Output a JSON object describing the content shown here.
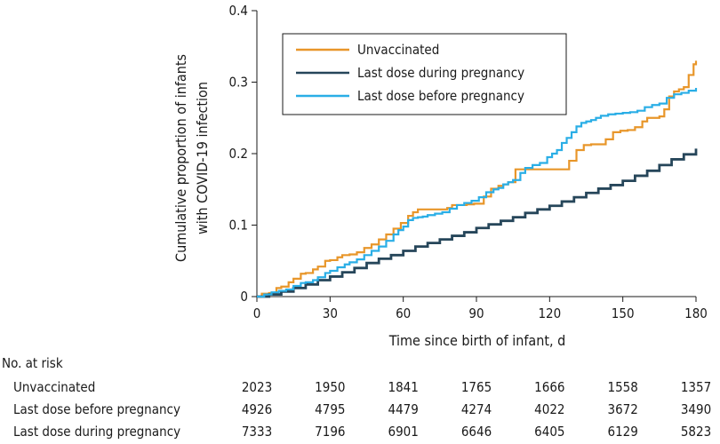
{
  "chart_data": {
    "type": "line",
    "xlabel": "Time since birth of infant, d",
    "ylabel_lines": [
      "Cumulative proportion of infants",
      "with COVID-19 infection"
    ],
    "xlim": [
      0,
      180
    ],
    "ylim": [
      0,
      0.4
    ],
    "x_ticks": [
      0,
      30,
      60,
      90,
      120,
      150,
      180
    ],
    "y_ticks": [
      0,
      0.1,
      0.2,
      0.3,
      0.4
    ],
    "x_tick_labels": [
      "0",
      "30",
      "60",
      "90",
      "120",
      "150",
      "180"
    ],
    "y_tick_labels": [
      "0",
      "0.1",
      "0.2",
      "0.3",
      "0.4"
    ],
    "grid": false,
    "legend_position": "top-right",
    "series": [
      {
        "name": "Unvaccinated",
        "color": "#e8962a",
        "points": [
          [
            0,
            0
          ],
          [
            2,
            0.004
          ],
          [
            5,
            0.005
          ],
          [
            8,
            0.012
          ],
          [
            10,
            0.014
          ],
          [
            13,
            0.02
          ],
          [
            15,
            0.025
          ],
          [
            18,
            0.032
          ],
          [
            20,
            0.033
          ],
          [
            23,
            0.038
          ],
          [
            25,
            0.042
          ],
          [
            28,
            0.05
          ],
          [
            30,
            0.051
          ],
          [
            33,
            0.055
          ],
          [
            35,
            0.058
          ],
          [
            38,
            0.059
          ],
          [
            41,
            0.062
          ],
          [
            44,
            0.068
          ],
          [
            47,
            0.073
          ],
          [
            50,
            0.08
          ],
          [
            53,
            0.087
          ],
          [
            56,
            0.095
          ],
          [
            59,
            0.103
          ],
          [
            62,
            0.113
          ],
          [
            64,
            0.118
          ],
          [
            66,
            0.122
          ],
          [
            69,
            0.122
          ],
          [
            72,
            0.122
          ],
          [
            75,
            0.122
          ],
          [
            78,
            0.124
          ],
          [
            80,
            0.128
          ],
          [
            83,
            0.128
          ],
          [
            86,
            0.129
          ],
          [
            89,
            0.13
          ],
          [
            91,
            0.13
          ],
          [
            93,
            0.14
          ],
          [
            96,
            0.151
          ],
          [
            99,
            0.155
          ],
          [
            101,
            0.157
          ],
          [
            103,
            0.16
          ],
          [
            106,
            0.178
          ],
          [
            108,
            0.178
          ],
          [
            111,
            0.178
          ],
          [
            114,
            0.178
          ],
          [
            117,
            0.178
          ],
          [
            120,
            0.178
          ],
          [
            123,
            0.178
          ],
          [
            125,
            0.178
          ],
          [
            128,
            0.19
          ],
          [
            131,
            0.205
          ],
          [
            134,
            0.212
          ],
          [
            137,
            0.213
          ],
          [
            140,
            0.213
          ],
          [
            143,
            0.22
          ],
          [
            146,
            0.23
          ],
          [
            149,
            0.232
          ],
          [
            152,
            0.233
          ],
          [
            155,
            0.237
          ],
          [
            158,
            0.245
          ],
          [
            160,
            0.25
          ],
          [
            163,
            0.25
          ],
          [
            165,
            0.252
          ],
          [
            167,
            0.262
          ],
          [
            169,
            0.28
          ],
          [
            171,
            0.287
          ],
          [
            173,
            0.29
          ],
          [
            175,
            0.293
          ],
          [
            177,
            0.31
          ],
          [
            179,
            0.325
          ],
          [
            180,
            0.33
          ]
        ]
      },
      {
        "name": "Last dose during pregnancy",
        "color": "#26465a",
        "points": [
          [
            0,
            0
          ],
          [
            5,
            0.003
          ],
          [
            10,
            0.007
          ],
          [
            15,
            0.012
          ],
          [
            20,
            0.017
          ],
          [
            25,
            0.023
          ],
          [
            30,
            0.028
          ],
          [
            35,
            0.034
          ],
          [
            40,
            0.04
          ],
          [
            45,
            0.047
          ],
          [
            50,
            0.053
          ],
          [
            55,
            0.058
          ],
          [
            60,
            0.064
          ],
          [
            65,
            0.07
          ],
          [
            70,
            0.075
          ],
          [
            75,
            0.08
          ],
          [
            80,
            0.085
          ],
          [
            85,
            0.09
          ],
          [
            90,
            0.096
          ],
          [
            95,
            0.101
          ],
          [
            100,
            0.106
          ],
          [
            105,
            0.111
          ],
          [
            110,
            0.117
          ],
          [
            115,
            0.122
          ],
          [
            120,
            0.127
          ],
          [
            125,
            0.133
          ],
          [
            130,
            0.139
          ],
          [
            135,
            0.145
          ],
          [
            140,
            0.151
          ],
          [
            145,
            0.156
          ],
          [
            150,
            0.162
          ],
          [
            155,
            0.169
          ],
          [
            160,
            0.176
          ],
          [
            165,
            0.184
          ],
          [
            170,
            0.192
          ],
          [
            175,
            0.199
          ],
          [
            180,
            0.207
          ]
        ]
      },
      {
        "name": "Last dose before pregnancy",
        "color": "#2aaee6",
        "points": [
          [
            0,
            0
          ],
          [
            3,
            0.003
          ],
          [
            6,
            0.006
          ],
          [
            9,
            0.008
          ],
          [
            12,
            0.01
          ],
          [
            15,
            0.015
          ],
          [
            18,
            0.019
          ],
          [
            20,
            0.02
          ],
          [
            23,
            0.023
          ],
          [
            25,
            0.027
          ],
          [
            28,
            0.033
          ],
          [
            30,
            0.036
          ],
          [
            33,
            0.041
          ],
          [
            36,
            0.045
          ],
          [
            38,
            0.048
          ],
          [
            41,
            0.052
          ],
          [
            44,
            0.058
          ],
          [
            47,
            0.064
          ],
          [
            50,
            0.07
          ],
          [
            53,
            0.078
          ],
          [
            56,
            0.087
          ],
          [
            58,
            0.093
          ],
          [
            60,
            0.098
          ],
          [
            62,
            0.107
          ],
          [
            64,
            0.11
          ],
          [
            66,
            0.111
          ],
          [
            68,
            0.112
          ],
          [
            70,
            0.114
          ],
          [
            73,
            0.116
          ],
          [
            76,
            0.118
          ],
          [
            79,
            0.123
          ],
          [
            82,
            0.128
          ],
          [
            85,
            0.131
          ],
          [
            88,
            0.134
          ],
          [
            91,
            0.139
          ],
          [
            94,
            0.146
          ],
          [
            97,
            0.15
          ],
          [
            99,
            0.152
          ],
          [
            101,
            0.157
          ],
          [
            103,
            0.16
          ],
          [
            105,
            0.163
          ],
          [
            108,
            0.173
          ],
          [
            110,
            0.18
          ],
          [
            113,
            0.184
          ],
          [
            116,
            0.187
          ],
          [
            119,
            0.195
          ],
          [
            121,
            0.2
          ],
          [
            123,
            0.205
          ],
          [
            125,
            0.215
          ],
          [
            127,
            0.222
          ],
          [
            129,
            0.23
          ],
          [
            131,
            0.238
          ],
          [
            133,
            0.243
          ],
          [
            135,
            0.245
          ],
          [
            137,
            0.247
          ],
          [
            139,
            0.25
          ],
          [
            141,
            0.253
          ],
          [
            144,
            0.255
          ],
          [
            147,
            0.256
          ],
          [
            150,
            0.257
          ],
          [
            153,
            0.258
          ],
          [
            156,
            0.26
          ],
          [
            159,
            0.265
          ],
          [
            162,
            0.268
          ],
          [
            165,
            0.27
          ],
          [
            168,
            0.278
          ],
          [
            171,
            0.283
          ],
          [
            174,
            0.285
          ],
          [
            177,
            0.288
          ],
          [
            180,
            0.292
          ]
        ]
      }
    ],
    "risk_table": {
      "title": "No. at risk",
      "times": [
        0,
        30,
        60,
        90,
        120,
        150,
        180
      ],
      "rows": [
        {
          "label": "Unvaccinated",
          "values": [
            "2023",
            "1950",
            "1841",
            "1765",
            "1666",
            "1558",
            "1357"
          ]
        },
        {
          "label": "Last dose before pregnancy",
          "values": [
            "4926",
            "4795",
            "4479",
            "4274",
            "4022",
            "3672",
            "3490"
          ]
        },
        {
          "label": "Last dose during pregnancy",
          "values": [
            "7333",
            "7196",
            "6901",
            "6646",
            "6405",
            "6129",
            "5823"
          ]
        }
      ]
    }
  }
}
